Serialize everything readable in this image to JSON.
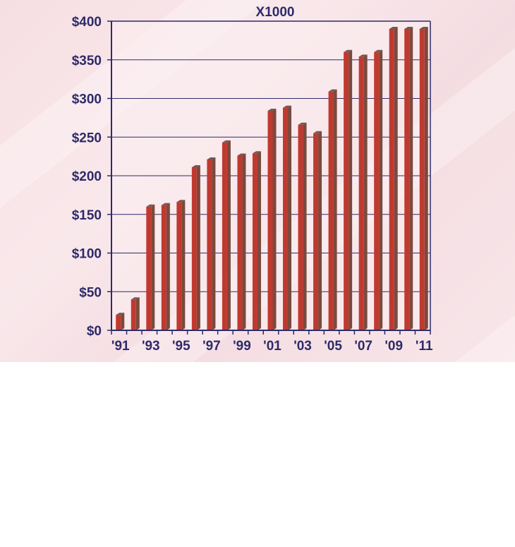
{
  "chart_data": {
    "type": "bar",
    "title": "X1000",
    "xlabel": "",
    "ylabel": "",
    "categories": [
      "'91",
      "'92",
      "'93",
      "'94",
      "'95",
      "'96",
      "'97",
      "'98",
      "'99",
      "'00",
      "'01",
      "'02",
      "'03",
      "'04",
      "'05",
      "'06",
      "'07",
      "'08",
      "'09",
      "'10",
      "'11"
    ],
    "x_tick_labels": [
      "'91",
      "'93",
      "'95",
      "'97",
      "'99",
      "'01",
      "'03",
      "'05",
      "'07",
      "'09",
      "'11"
    ],
    "values": [
      20,
      40,
      160,
      162,
      166,
      211,
      221,
      243,
      226,
      229,
      284,
      288,
      266,
      255,
      309,
      360,
      354,
      360,
      390,
      390,
      390
    ],
    "ylim": [
      0,
      400
    ],
    "y_ticks": [
      0,
      50,
      100,
      150,
      200,
      250,
      300,
      350,
      400
    ],
    "y_tick_labels": [
      "$0",
      "$50",
      "$100",
      "$150",
      "$200",
      "$250",
      "$300",
      "$350",
      "$400"
    ],
    "grid": true,
    "legend": "none",
    "colors": {
      "bar_front": "#c0392f",
      "bar_side": "#7a4a3e",
      "bar_top": "#6e5a52",
      "axis": "#2e2a6a",
      "grid": "#2e2a6a",
      "text": "#2e2a6a",
      "plot_bg": "#fbeef1"
    }
  }
}
